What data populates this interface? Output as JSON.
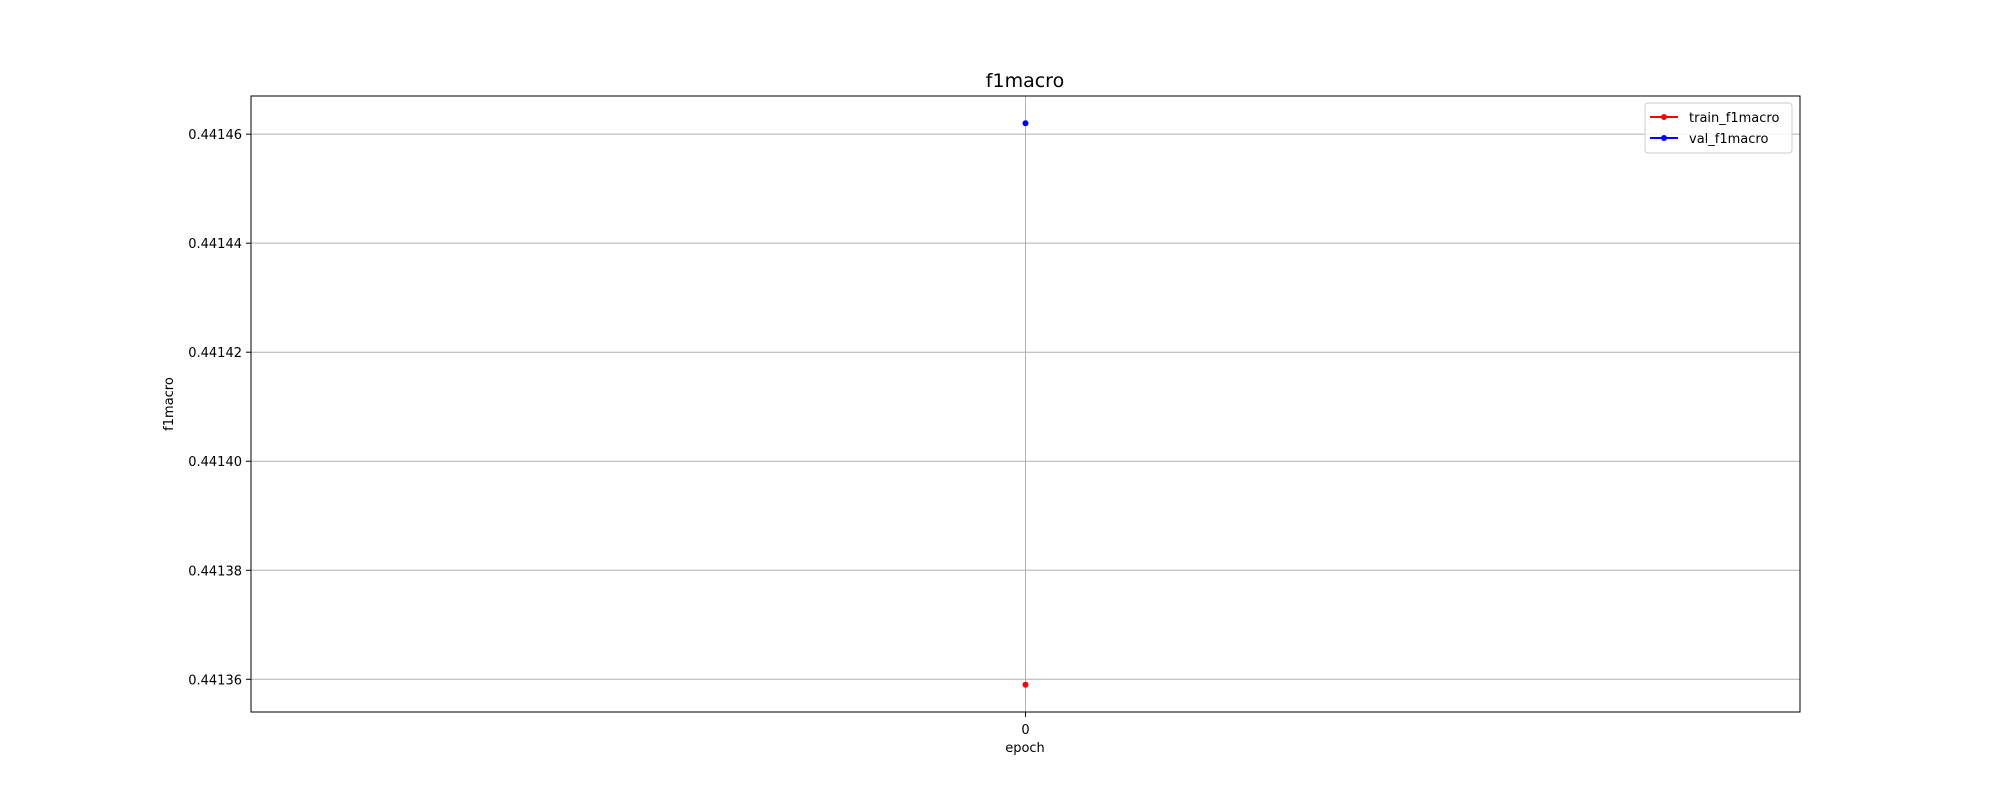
{
  "chart_data": {
    "type": "line",
    "title": "f1macro",
    "xlabel": "epoch",
    "ylabel": "f1macro",
    "x": [
      0
    ],
    "x_ticks": [
      "0"
    ],
    "xlim": [
      -1,
      1
    ],
    "ylim": [
      0.441354,
      0.441467
    ],
    "y_ticks": [
      {
        "value": 0.44136,
        "label": "0.44136"
      },
      {
        "value": 0.44138,
        "label": "0.44138"
      },
      {
        "value": 0.4414,
        "label": "0.44140"
      },
      {
        "value": 0.44142,
        "label": "0.44142"
      },
      {
        "value": 0.44144,
        "label": "0.44144"
      },
      {
        "value": 0.44146,
        "label": "0.44146"
      }
    ],
    "grid": true,
    "legend_position": "top-right",
    "series": [
      {
        "name": "train_f1macro",
        "color": "#ff0000",
        "values": [
          0.441359
        ]
      },
      {
        "name": "val_f1macro",
        "color": "#0000ff",
        "values": [
          0.441462
        ]
      }
    ]
  }
}
